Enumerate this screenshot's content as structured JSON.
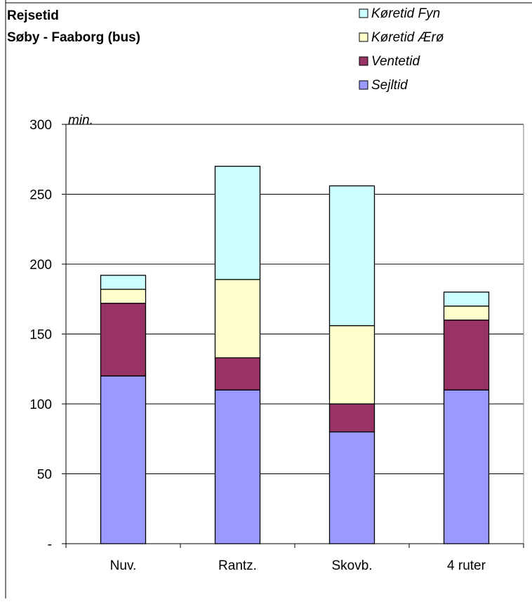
{
  "chart_data": {
    "type": "bar",
    "stacked": true,
    "title": [
      "Rejsetid",
      "Søby - Faaborg (bus)"
    ],
    "ylabel": "min.",
    "xlabel": "",
    "categories": [
      "Nuv.",
      "Rantz.",
      "Skovb.",
      "4 ruter"
    ],
    "ylim": [
      0,
      300
    ],
    "yticks": [
      0,
      50,
      100,
      150,
      200,
      250,
      300
    ],
    "ytick_labels": [
      "-",
      "50",
      "100",
      "150",
      "200",
      "250",
      "300"
    ],
    "grid": true,
    "legend_position": "top-right",
    "series": [
      {
        "name": "Sejltid",
        "color": "#9999ff",
        "values": [
          120,
          110,
          80,
          110
        ]
      },
      {
        "name": "Ventetid",
        "color": "#993366",
        "values": [
          52,
          23,
          20,
          50
        ]
      },
      {
        "name": "Køretid Ærø",
        "color": "#ffffcc",
        "values": [
          10,
          56,
          56,
          10
        ]
      },
      {
        "name": "Køretid Fyn",
        "color": "#ccffff",
        "values": [
          10,
          81,
          100,
          10
        ]
      }
    ],
    "legend_order": [
      "Køretid Fyn",
      "Køretid Ærø",
      "Ventetid",
      "Sejltid"
    ]
  }
}
